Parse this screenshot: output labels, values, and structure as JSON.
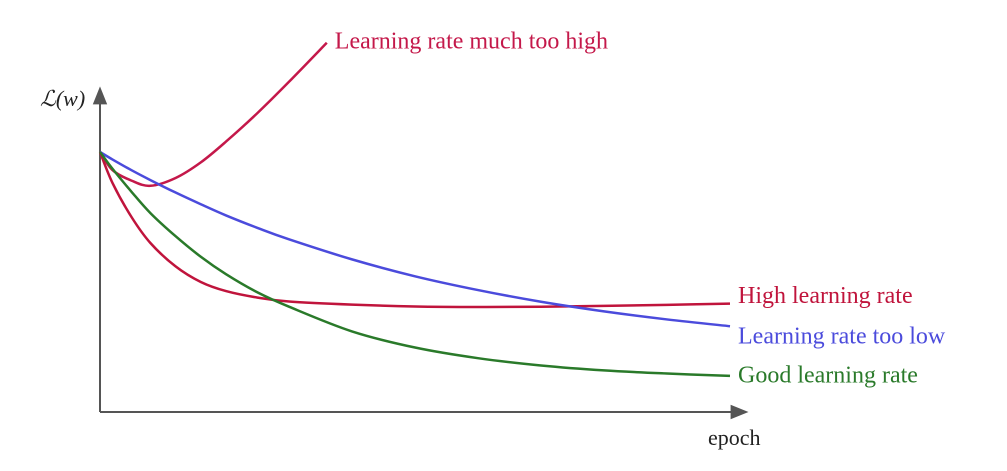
{
  "chart_data": {
    "type": "line",
    "y_label": "ℒ(w)",
    "x_label": "epoch",
    "xlim": [
      0,
      102
    ],
    "ylim": [
      0,
      145
    ],
    "series": [
      {
        "name": "Learning rate much too high",
        "color": "#c4184a",
        "x": [
          0,
          2,
          5,
          8,
          12,
          16,
          20,
          25,
          30,
          36
        ],
        "values": [
          100,
          93,
          89,
          87,
          90,
          96,
          104,
          115,
          127,
          142
        ]
      },
      {
        "name": "High learning rate",
        "color": "#c0143c",
        "x": [
          0,
          2,
          5,
          8,
          12,
          16,
          20,
          25,
          30,
          40,
          50,
          60,
          70,
          80,
          90,
          100
        ],
        "values": [
          100,
          88,
          75,
          65,
          56,
          50,
          46.5,
          44,
          42.5,
          41.3,
          40.6,
          40.4,
          40.5,
          40.8,
          41.2,
          41.7
        ]
      },
      {
        "name": "Learning rate too low",
        "color": "#4b4bdc",
        "x": [
          0,
          2,
          5,
          8,
          12,
          16,
          20,
          25,
          30,
          40,
          50,
          60,
          70,
          80,
          90,
          100
        ],
        "values": [
          100,
          97.1,
          93.0,
          89.2,
          84.4,
          79.9,
          75.6,
          70.8,
          66.4,
          58.7,
          52.2,
          46.9,
          42.4,
          38.7,
          35.6,
          33.0
        ]
      },
      {
        "name": "Good learning rate",
        "color": "#2a7a2a",
        "x": [
          0,
          2,
          5,
          8,
          12,
          16,
          20,
          25,
          30,
          40,
          50,
          60,
          70,
          80,
          90,
          100
        ],
        "values": [
          100,
          93.5,
          84.7,
          76.5,
          67.6,
          59.7,
          53.0,
          46.0,
          40.5,
          31.0,
          24.8,
          20.7,
          17.9,
          16.0,
          14.8,
          13.9
        ]
      }
    ]
  }
}
